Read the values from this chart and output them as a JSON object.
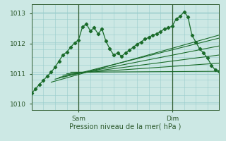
{
  "title": "",
  "xlabel": "Pression niveau de la mer( hPa )",
  "ylabel": "",
  "bg_color": "#cce8e4",
  "grid_color": "#99cccc",
  "line_color": "#1a6b2a",
  "ylim": [
    1009.8,
    1013.3
  ],
  "xlim": [
    0,
    96
  ],
  "yticks": [
    1010,
    1011,
    1012,
    1013
  ],
  "xtick_positions": [
    24,
    72
  ],
  "xtick_labels": [
    "Sam",
    "Dim"
  ],
  "vline_positions": [
    24,
    72
  ],
  "figsize": [
    3.2,
    2.0
  ],
  "dpi": 100,
  "main_line": [
    0,
    1010.35,
    2,
    1010.5,
    4,
    1010.65,
    6,
    1010.78,
    8,
    1010.92,
    10,
    1011.05,
    12,
    1011.22,
    14,
    1011.42,
    16,
    1011.62,
    18,
    1011.72,
    20,
    1011.88,
    22,
    1012.02,
    24,
    1012.12,
    26,
    1012.55,
    28,
    1012.65,
    30,
    1012.42,
    32,
    1012.52,
    34,
    1012.32,
    36,
    1012.48,
    38,
    1012.08,
    40,
    1011.82,
    42,
    1011.62,
    44,
    1011.68,
    46,
    1011.58,
    48,
    1011.68,
    50,
    1011.78,
    52,
    1011.88,
    54,
    1011.98,
    56,
    1012.05,
    58,
    1012.15,
    60,
    1012.2,
    62,
    1012.28,
    64,
    1012.32,
    66,
    1012.4,
    68,
    1012.48,
    70,
    1012.52,
    72,
    1012.58,
    74,
    1012.82,
    76,
    1012.9,
    78,
    1013.05,
    80,
    1012.88,
    82,
    1012.28,
    84,
    1012.05,
    86,
    1011.82,
    88,
    1011.68,
    90,
    1011.52,
    92,
    1011.28,
    94,
    1011.12,
    96,
    1011.08
  ],
  "fan_lines": [
    {
      "x0": 20,
      "y0": 1011.05,
      "x1": 96,
      "y1": 1011.08
    },
    {
      "x0": 18,
      "y0": 1011.0,
      "x1": 96,
      "y1": 1011.35
    },
    {
      "x0": 16,
      "y0": 1010.95,
      "x1": 96,
      "y1": 1011.62
    },
    {
      "x0": 14,
      "y0": 1010.88,
      "x1": 96,
      "y1": 1011.92
    },
    {
      "x0": 12,
      "y0": 1010.82,
      "x1": 96,
      "y1": 1012.18
    },
    {
      "x0": 10,
      "y0": 1010.72,
      "x1": 96,
      "y1": 1012.28
    }
  ]
}
